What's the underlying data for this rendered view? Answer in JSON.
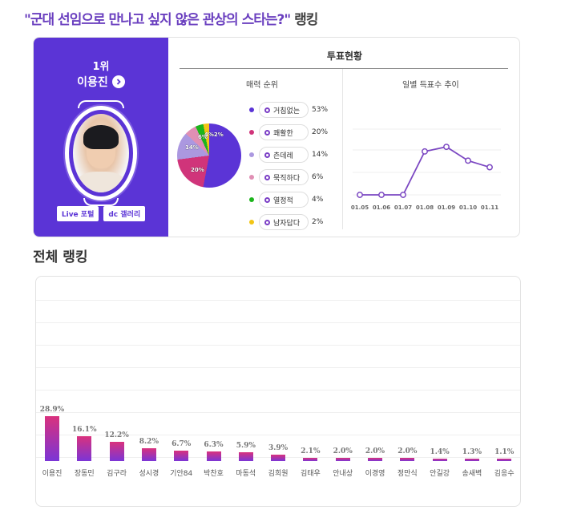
{
  "page": {
    "title_question": "\"군대 선임으로 만나고 싶지 않은 관상의 스타는?\"",
    "title_suffix": "랭킹",
    "section_title": "전체 랭킹"
  },
  "top_card": {
    "rank_label": "1위",
    "name": "이용진",
    "buttons": [
      "Live 포털",
      "dc 갤러리"
    ],
    "vote_title": "투표현황",
    "charm_title": "매력 순위",
    "trend_title": "일별 득표수 추이"
  },
  "colors": {
    "accent": "#5b34d6",
    "line": "#7b47c2",
    "bar_top": "#d9317d",
    "bar_bottom": "#7b35d6"
  },
  "chart_data": [
    {
      "type": "pie",
      "title": "매력 순위",
      "categories": [
        "거침없는",
        "쾌활한",
        "츤데레",
        "묵직하다",
        "열정적",
        "남자답다"
      ],
      "values": [
        53,
        20,
        14,
        6,
        4,
        2
      ],
      "labels": [
        "53%",
        "20%",
        "14%",
        "6%",
        "4%",
        "2%"
      ],
      "colors": [
        "#5b34d6",
        "#d0347a",
        "#ab98e0",
        "#e08fb4",
        "#1cb51c",
        "#f2c515"
      ]
    },
    {
      "type": "line",
      "title": "일별 득표수 추이",
      "x": [
        "01.05",
        "01.06",
        "01.07",
        "01.08",
        "01.09",
        "01.10",
        "01.11"
      ],
      "values": [
        0,
        0,
        0,
        66,
        73,
        52,
        42
      ],
      "ylim": [
        0,
        100
      ],
      "grid": true
    },
    {
      "type": "bar",
      "title": "전체 랭킹",
      "categories": [
        "이용진",
        "장동민",
        "김구라",
        "성시경",
        "기안84",
        "박찬호",
        "마동석",
        "김희원",
        "김태우",
        "안내상",
        "이경영",
        "정만식",
        "안길강",
        "송새벽",
        "김응수"
      ],
      "values": [
        28.9,
        16.1,
        12.2,
        8.2,
        6.7,
        6.3,
        5.9,
        3.9,
        2.1,
        2.0,
        2.0,
        2.0,
        1.4,
        1.3,
        1.1
      ],
      "labels": [
        "28.9%",
        "16.1%",
        "12.2%",
        "8.2%",
        "6.7%",
        "6.3%",
        "5.9%",
        "3.9%",
        "2.1%",
        "2.0%",
        "2.0%",
        "2.0%",
        "1.4%",
        "1.3%",
        "1.1%"
      ],
      "grid": true
    }
  ]
}
